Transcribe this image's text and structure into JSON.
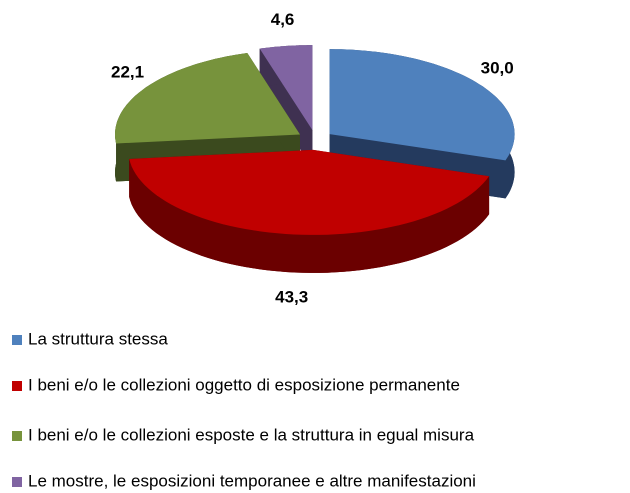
{
  "chart_data": {
    "type": "pie3d",
    "categories": [
      "La struttura stessa",
      "I beni e/o le collezioni oggetto di esposizione permanente",
      "I beni e/o le collezioni esposte e la struttura in egual misura",
      "Le mostre, le esposizioni temporanee e altre manifestazioni"
    ],
    "values": [
      30.0,
      43.3,
      22.1,
      4.6
    ],
    "value_labels": [
      "30,0",
      "43,3",
      "22,1",
      "4,6"
    ],
    "colors": [
      "#4f81bd",
      "#c00000",
      "#77933c",
      "#8064a2"
    ],
    "side_colors": [
      "#243a5e",
      "#6b0000",
      "#3b4a1e",
      "#3f3151"
    ],
    "legend": "bottom"
  }
}
